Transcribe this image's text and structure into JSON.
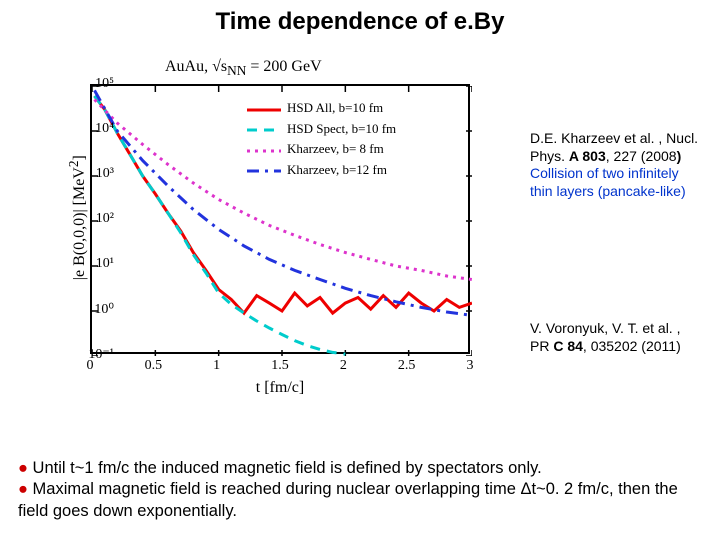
{
  "title": "Time dependence of e.By",
  "chart": {
    "type": "line",
    "super_title_html": "AuAu,  √s<sub>NN</sub> = 200 GeV",
    "ylabel_html": "|e B(0,0,0)|  [MeV<sup>2</sup>]",
    "xlabel": "t [fm/c]",
    "background_color": "#ffffff",
    "border_color": "#000000",
    "xlim": [
      0,
      3
    ],
    "ylim": [
      0.1,
      100000
    ],
    "yscale": "log",
    "xticks": [
      0,
      0.5,
      1,
      1.5,
      2,
      2.5,
      3
    ],
    "yticks": [
      0.1,
      1,
      10,
      100,
      1000,
      10000,
      100000
    ],
    "ytick_labels": [
      "10⁻¹",
      "10⁰",
      "10¹",
      "10²",
      "10³",
      "10⁴",
      "10⁵"
    ],
    "legend": [
      {
        "label": "HSD All, b=10 fm",
        "color": "#ee0000",
        "style": "solid",
        "width": 3
      },
      {
        "label": "HSD Spect, b=10 fm",
        "color": "#00cccc",
        "style": "dash",
        "width": 3
      },
      {
        "label": "Kharzeev, b= 8 fm",
        "color": "#dd33cc",
        "style": "dot",
        "width": 3
      },
      {
        "label": "Kharzeev, b=12 fm",
        "color": "#2233dd",
        "style": "dashdot",
        "width": 3
      }
    ],
    "series": {
      "hsd_all": {
        "color": "#ee0000",
        "style": "solid",
        "width": 3,
        "x": [
          0.02,
          0.1,
          0.2,
          0.3,
          0.4,
          0.5,
          0.6,
          0.7,
          0.8,
          0.9,
          1.0,
          1.1,
          1.2,
          1.3,
          1.4,
          1.5,
          1.6,
          1.7,
          1.8,
          1.9,
          2.0,
          2.1,
          2.2,
          2.3,
          2.4,
          2.5,
          2.6,
          2.7,
          2.8,
          2.9,
          3.0
        ],
        "y": [
          60000,
          30000,
          9000,
          3000,
          1000,
          400,
          150,
          60,
          20,
          8,
          3,
          1.8,
          0.9,
          2.2,
          1.5,
          1.0,
          2.5,
          1.3,
          2.0,
          0.9,
          1.5,
          2.0,
          1.1,
          2.2,
          1.2,
          2.5,
          1.5,
          1.0,
          1.8,
          1.2,
          1.5
        ]
      },
      "hsd_spect": {
        "color": "#00cccc",
        "style": "dash",
        "width": 3,
        "x": [
          0.02,
          0.1,
          0.2,
          0.3,
          0.4,
          0.5,
          0.6,
          0.7,
          0.8,
          0.9,
          1.0,
          1.1,
          1.2,
          1.3,
          1.4,
          1.5,
          1.6,
          1.7,
          1.8,
          1.9,
          2.0
        ],
        "y": [
          60000,
          30000,
          9000,
          3000,
          1000,
          400,
          150,
          55,
          18,
          7,
          2.5,
          1.4,
          0.9,
          0.6,
          0.42,
          0.3,
          0.22,
          0.17,
          0.14,
          0.12,
          0.11
        ]
      },
      "kharzeev_8": {
        "color": "#dd33cc",
        "style": "dot",
        "width": 3,
        "x": [
          0.02,
          0.2,
          0.4,
          0.6,
          0.8,
          1.0,
          1.2,
          1.4,
          1.6,
          1.8,
          2.0,
          2.2,
          2.4,
          2.6,
          2.8,
          3.0
        ],
        "y": [
          50000,
          15000,
          5000,
          1800,
          700,
          300,
          150,
          80,
          48,
          30,
          20,
          14,
          10,
          8,
          6,
          5
        ]
      },
      "kharzeev_12": {
        "color": "#2233dd",
        "style": "dashdot",
        "width": 3,
        "x": [
          0.02,
          0.2,
          0.4,
          0.6,
          0.8,
          1.0,
          1.2,
          1.4,
          1.6,
          1.8,
          2.0,
          2.2,
          2.4,
          2.6,
          2.8,
          3.0
        ],
        "y": [
          80000,
          10000,
          2200,
          600,
          180,
          65,
          28,
          14,
          8,
          5,
          3.2,
          2.2,
          1.6,
          1.2,
          0.95,
          0.8
        ]
      }
    }
  },
  "side": {
    "ref1_html": "D.E. Kharzeev et al. , Nucl. Phys. <b>A 803</b>, 227 (2008<b>)</b><br><span class='blue'>Collision of two infinitely thin layers (pancake-like)</span>",
    "ref2_html": "V. Voronyuk, V. T. et  al. , PR <b>C 84</b>, 035202 (2011)"
  },
  "bottom_html": "<span class='bullet-red'>●</span> Until t~1 fm/c the induced magnetic field is defined by spectators only.<br><span class='bullet-red'>●</span> Maximal magnetic field is reached during nuclear overlapping time Δt~0. 2 fm/c, then the field goes down exponentially."
}
